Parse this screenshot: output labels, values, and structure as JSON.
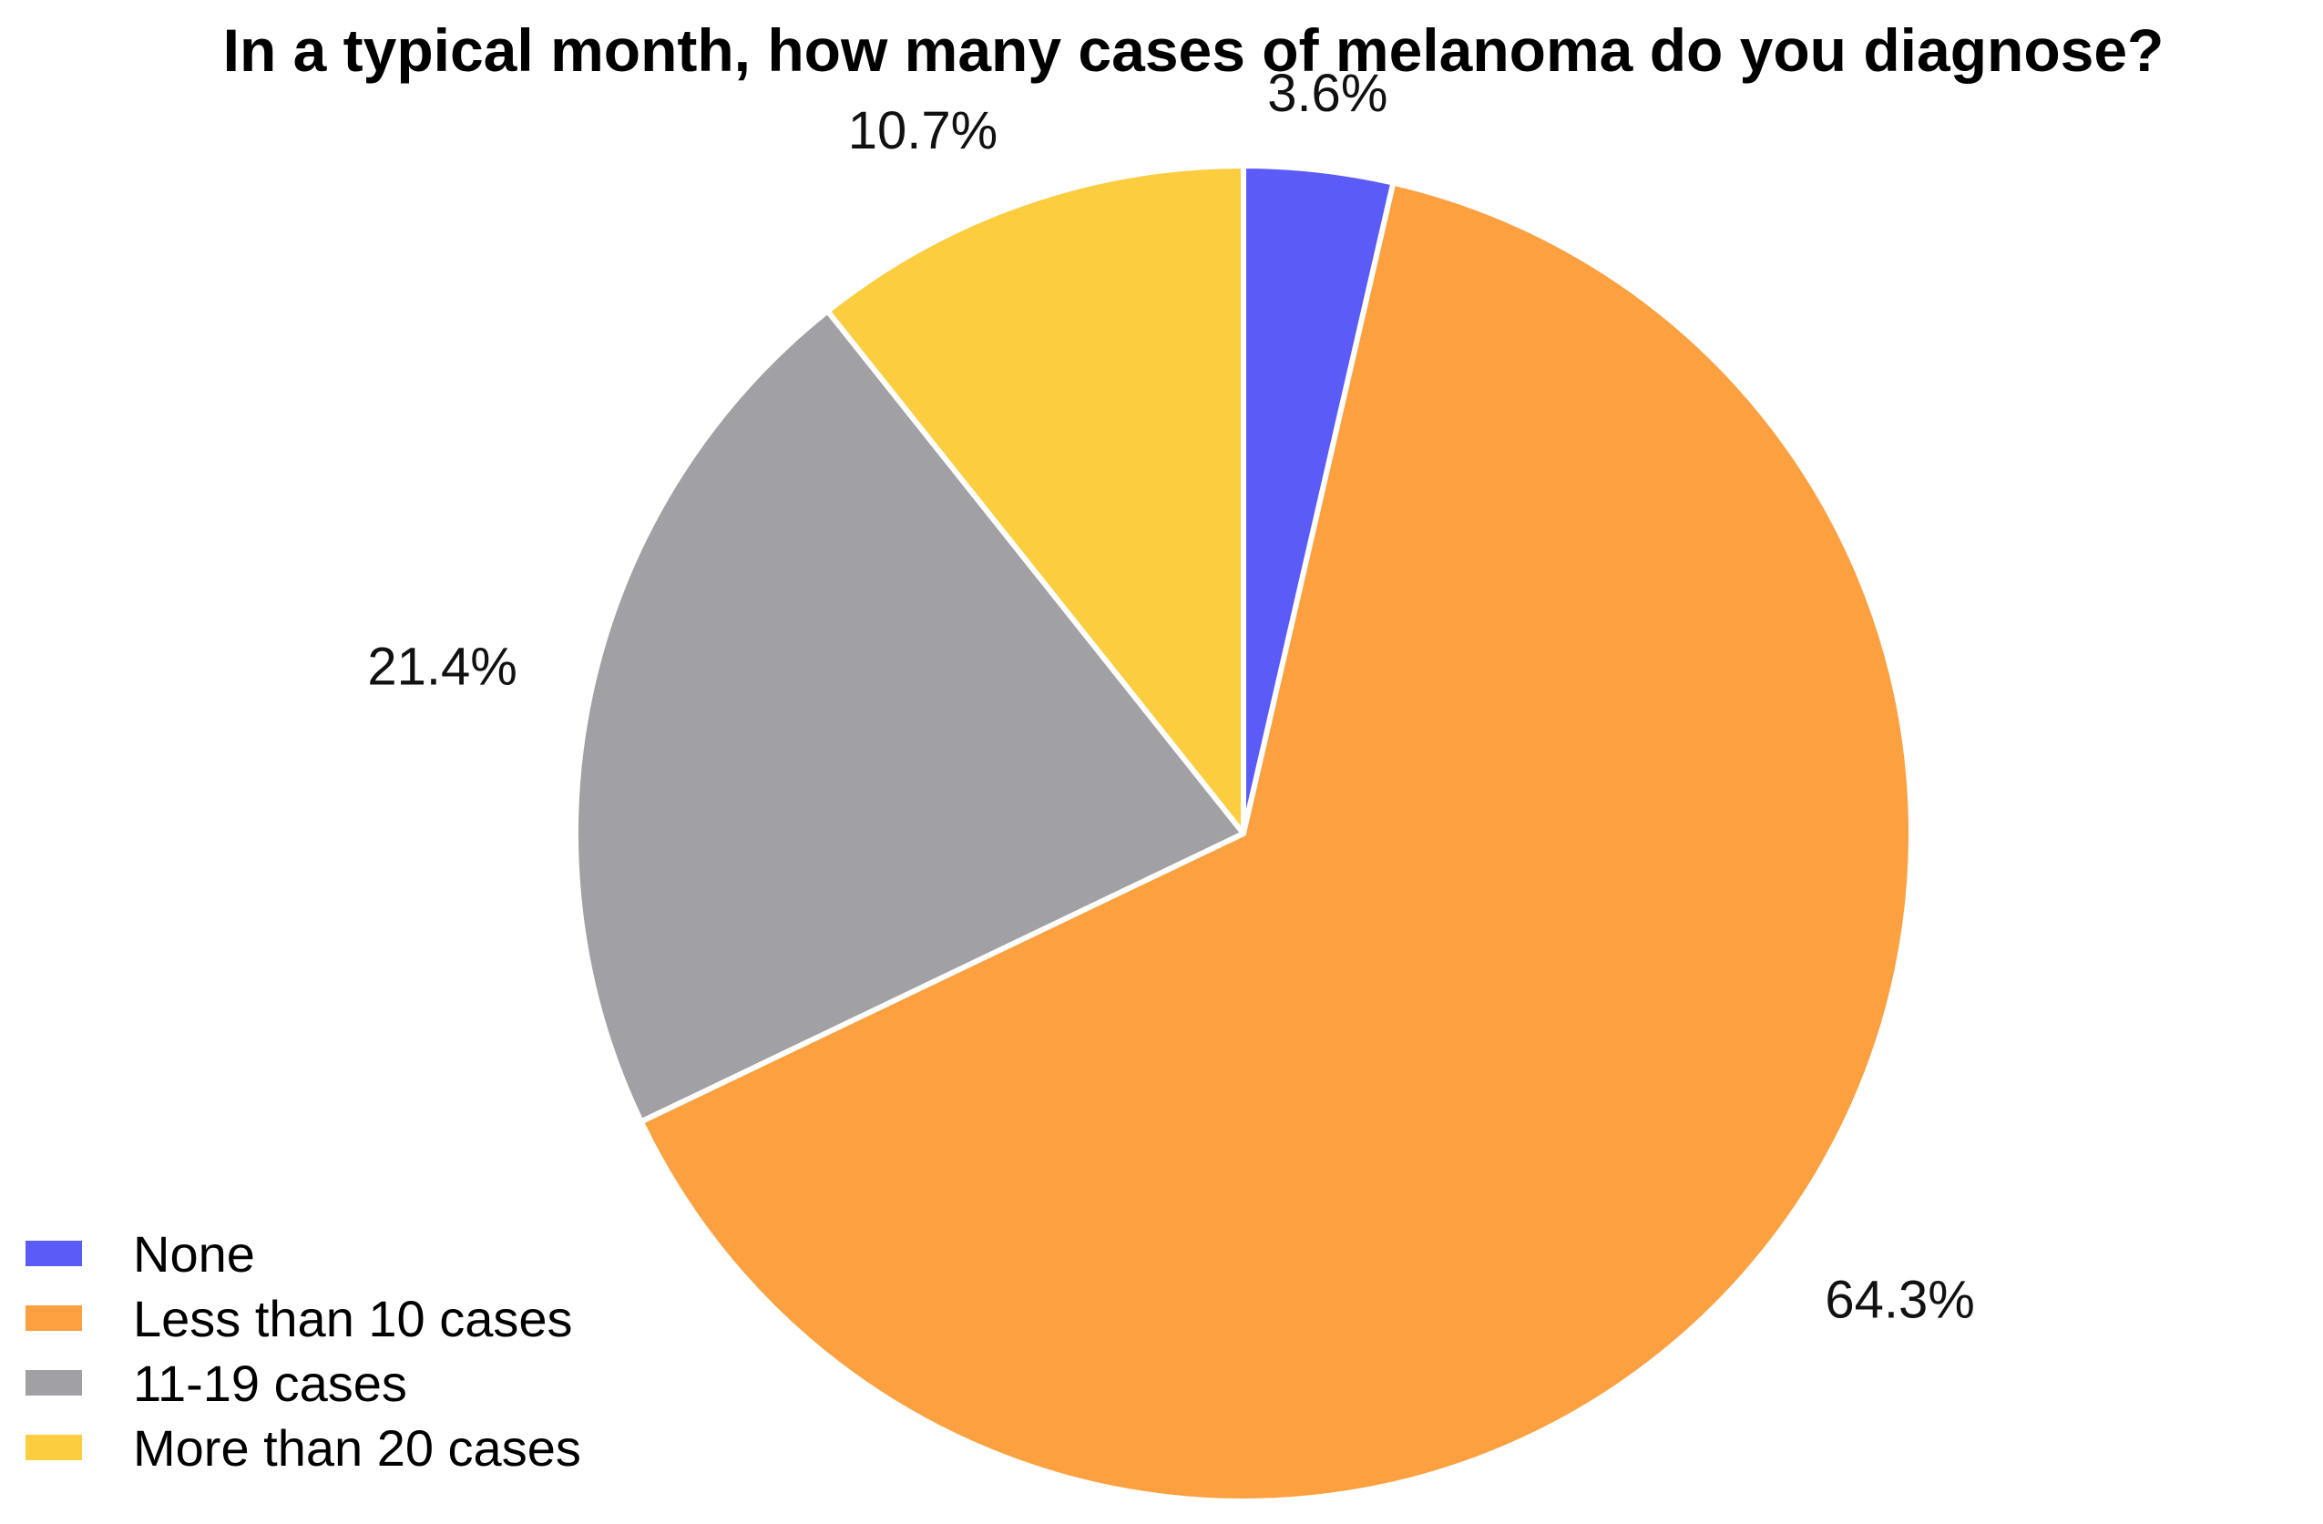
{
  "chart_data": {
    "type": "pie",
    "title": "In a typical month, how many cases of melanoma do you diagnose?",
    "start_angle_deg": 0,
    "direction": "clockwise",
    "slices": [
      {
        "label": "None",
        "value": 3.6,
        "display": "3.6%",
        "color": "#5b5bf7"
      },
      {
        "label": "Less than 10 cases",
        "value": 64.3,
        "display": "64.3%",
        "color": "#fca040"
      },
      {
        "label": "11-19 cases",
        "value": 21.4,
        "display": "21.4%",
        "color": "#a1a0a5"
      },
      {
        "label": "More than 20 cases",
        "value": 10.7,
        "display": "10.7%",
        "color": "#fdcd40"
      }
    ],
    "legend": {
      "position": "bottom-left",
      "items": [
        "None",
        "Less than 10 cases",
        "11-19 cases",
        "More than 20 cases"
      ]
    }
  }
}
